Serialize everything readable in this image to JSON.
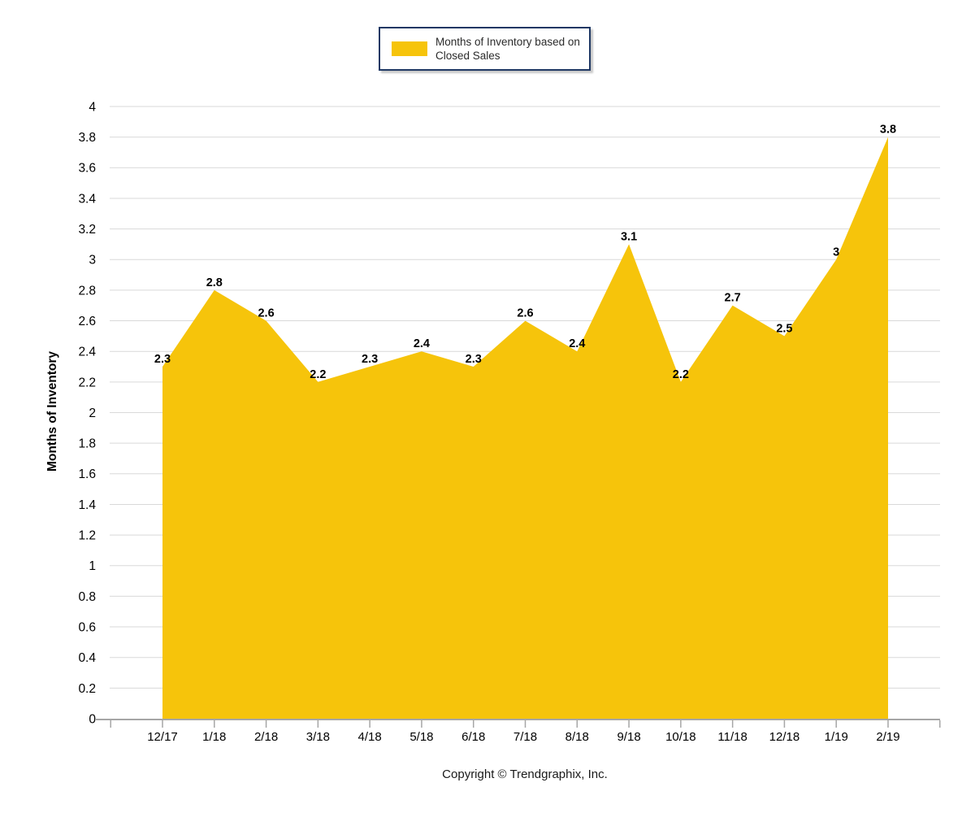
{
  "footer_text": "Copyright © Trendgraphix, Inc.",
  "chart_data": {
    "type": "area",
    "series_name": "Months of Inventory based on Closed Sales",
    "categories": [
      "12/17",
      "1/18",
      "2/18",
      "3/18",
      "4/18",
      "5/18",
      "6/18",
      "7/18",
      "8/18",
      "9/18",
      "10/18",
      "11/18",
      "12/18",
      "1/19",
      "2/19"
    ],
    "values": [
      2.3,
      2.8,
      2.6,
      2.2,
      2.3,
      2.4,
      2.3,
      2.6,
      2.4,
      3.1,
      2.2,
      2.7,
      2.5,
      3,
      3.8
    ],
    "title": "",
    "xlabel": "",
    "ylabel": "Months of Inventory",
    "ylim": [
      0,
      4
    ],
    "ytick_step": 0.2,
    "grid": true,
    "legend_position": "top-center",
    "series_color": "#F6C40B",
    "grid_color": "#D9D9D9",
    "axis_color": "#A6A6A6",
    "tick_label_color": "#000000",
    "data_label_color": "#000000"
  }
}
